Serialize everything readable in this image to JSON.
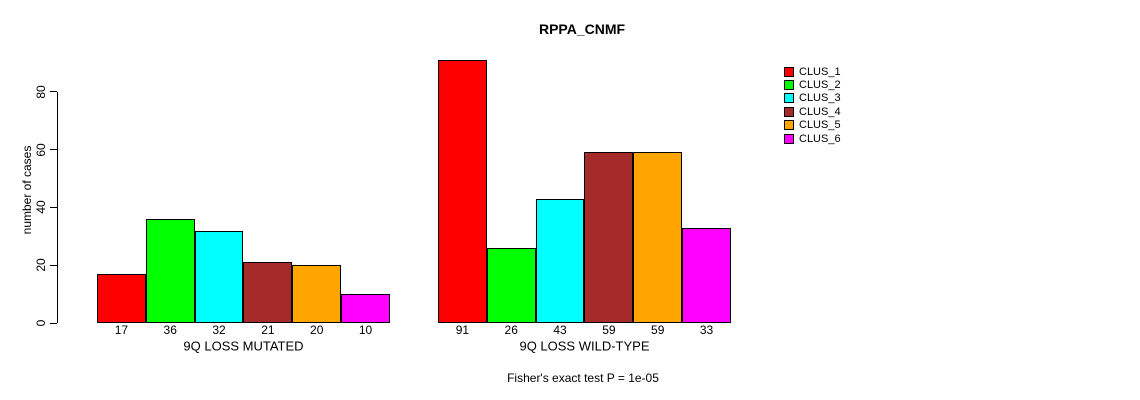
{
  "title": "RPPA_CNMF",
  "footer": "Fisher's exact test P = 1e-05",
  "chart_data": {
    "type": "bar",
    "title": "RPPA_CNMF",
    "xlabel": "",
    "ylabel": "number of cases",
    "ylim": [
      0,
      91
    ],
    "yticks": [
      0,
      20,
      40,
      60,
      80
    ],
    "grid": false,
    "legend_position": "right-outside",
    "series_labels": [
      "CLUS_1",
      "CLUS_2",
      "CLUS_3",
      "CLUS_4",
      "CLUS_5",
      "CLUS_6"
    ],
    "colors": [
      "#FF0000",
      "#00FF00",
      "#00FFFF",
      "#A52A2A",
      "#FFA500",
      "#FF00FF"
    ],
    "groups": [
      {
        "label": "9Q LOSS MUTATED",
        "values": [
          17,
          36,
          32,
          21,
          20,
          10
        ]
      },
      {
        "label": "9Q LOSS WILD-TYPE",
        "values": [
          91,
          26,
          43,
          59,
          59,
          33
        ]
      }
    ],
    "annotation": "Fisher's exact test P = 1e-05"
  }
}
